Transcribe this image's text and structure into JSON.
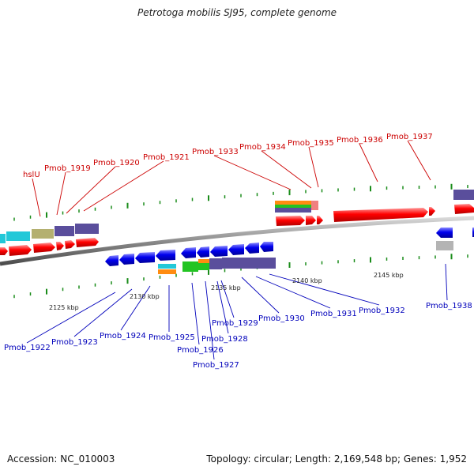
{
  "title": "Petrotoga mobilis SJ95, complete genome",
  "footer": {
    "accession": "Accession: NC_010003",
    "summary": "Topology: circular; Length: 2,169,548 bp; Genes: 1,952"
  },
  "scale_labels": [
    "2125 kbp",
    "2130 kbp",
    "2135 kbp",
    "2140 kbp",
    "2145 kbp"
  ],
  "top_gene_labels": [
    "hslU",
    "Pmob_1919",
    "Pmob_1920",
    "Pmob_1921",
    "Pmob_1933",
    "Pmob_1934",
    "Pmob_1935",
    "Pmob_1936",
    "Pmob_1937"
  ],
  "bottom_gene_labels": [
    "Pmob_1922",
    "Pmob_1923",
    "Pmob_1924",
    "Pmob_1925",
    "Pmob_1926",
    "Pmob_1927",
    "Pmob_1928",
    "Pmob_1929",
    "Pmob_1930",
    "Pmob_1931",
    "Pmob_1932",
    "Pmob_1938"
  ],
  "colors": {
    "forward_gene": "#ff0000",
    "reverse_gene": "#0000ee",
    "backbone": "#8c8c8c",
    "tick": "#1a8c1a",
    "cog_cyan": "#22c8d8",
    "cog_olive": "#b4b070",
    "cog_slate": "#5a4e9c",
    "cog_orange": "#ff8c10",
    "cog_green": "#22c422",
    "cog_pink": "#f08080",
    "cog_gray": "#b4b4b4"
  }
}
